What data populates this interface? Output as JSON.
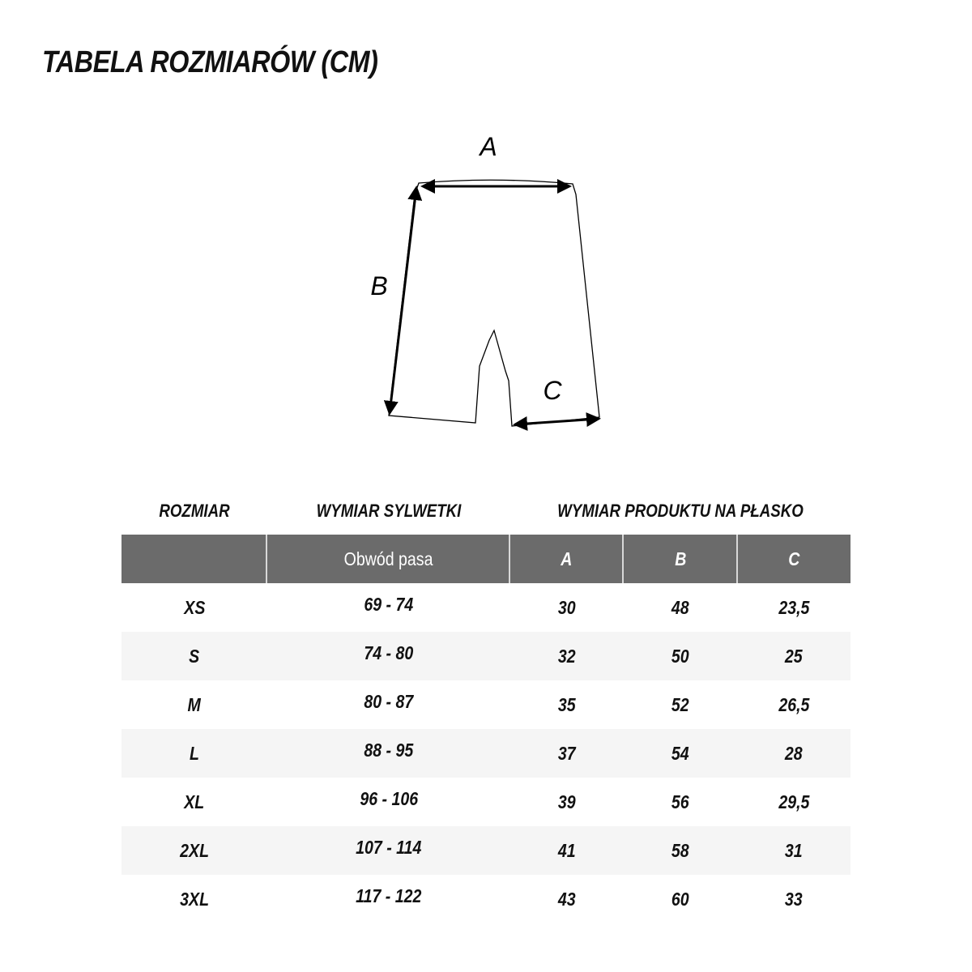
{
  "title": "TABELA ROZMIARÓW (CM)",
  "diagram": {
    "labels": [
      "A",
      "B",
      "C"
    ]
  },
  "captions": {
    "size": "ROZMIAR",
    "body": "WYMIAR SYLWETKI",
    "product": "WYMIAR PRODUKTU NA PŁASKO"
  },
  "table": {
    "headers": [
      "",
      "Obwód pasa",
      "A",
      "B",
      "C"
    ],
    "rows": [
      [
        "XS",
        "69 - 74",
        "30",
        "48",
        "23,5"
      ],
      [
        "S",
        "74 - 80",
        "32",
        "50",
        "25"
      ],
      [
        "M",
        "80 - 87",
        "35",
        "52",
        "26,5"
      ],
      [
        "L",
        "88 - 95",
        "37",
        "54",
        "28"
      ],
      [
        "XL",
        "96 - 106",
        "39",
        "56",
        "29,5"
      ],
      [
        "2XL",
        "107 - 114",
        "41",
        "58",
        "31"
      ],
      [
        "3XL",
        "117 - 122",
        "43",
        "60",
        "33"
      ]
    ]
  },
  "colors": {
    "header_bg": "#6b6b6b",
    "alt_row": "#f5f5f5"
  }
}
